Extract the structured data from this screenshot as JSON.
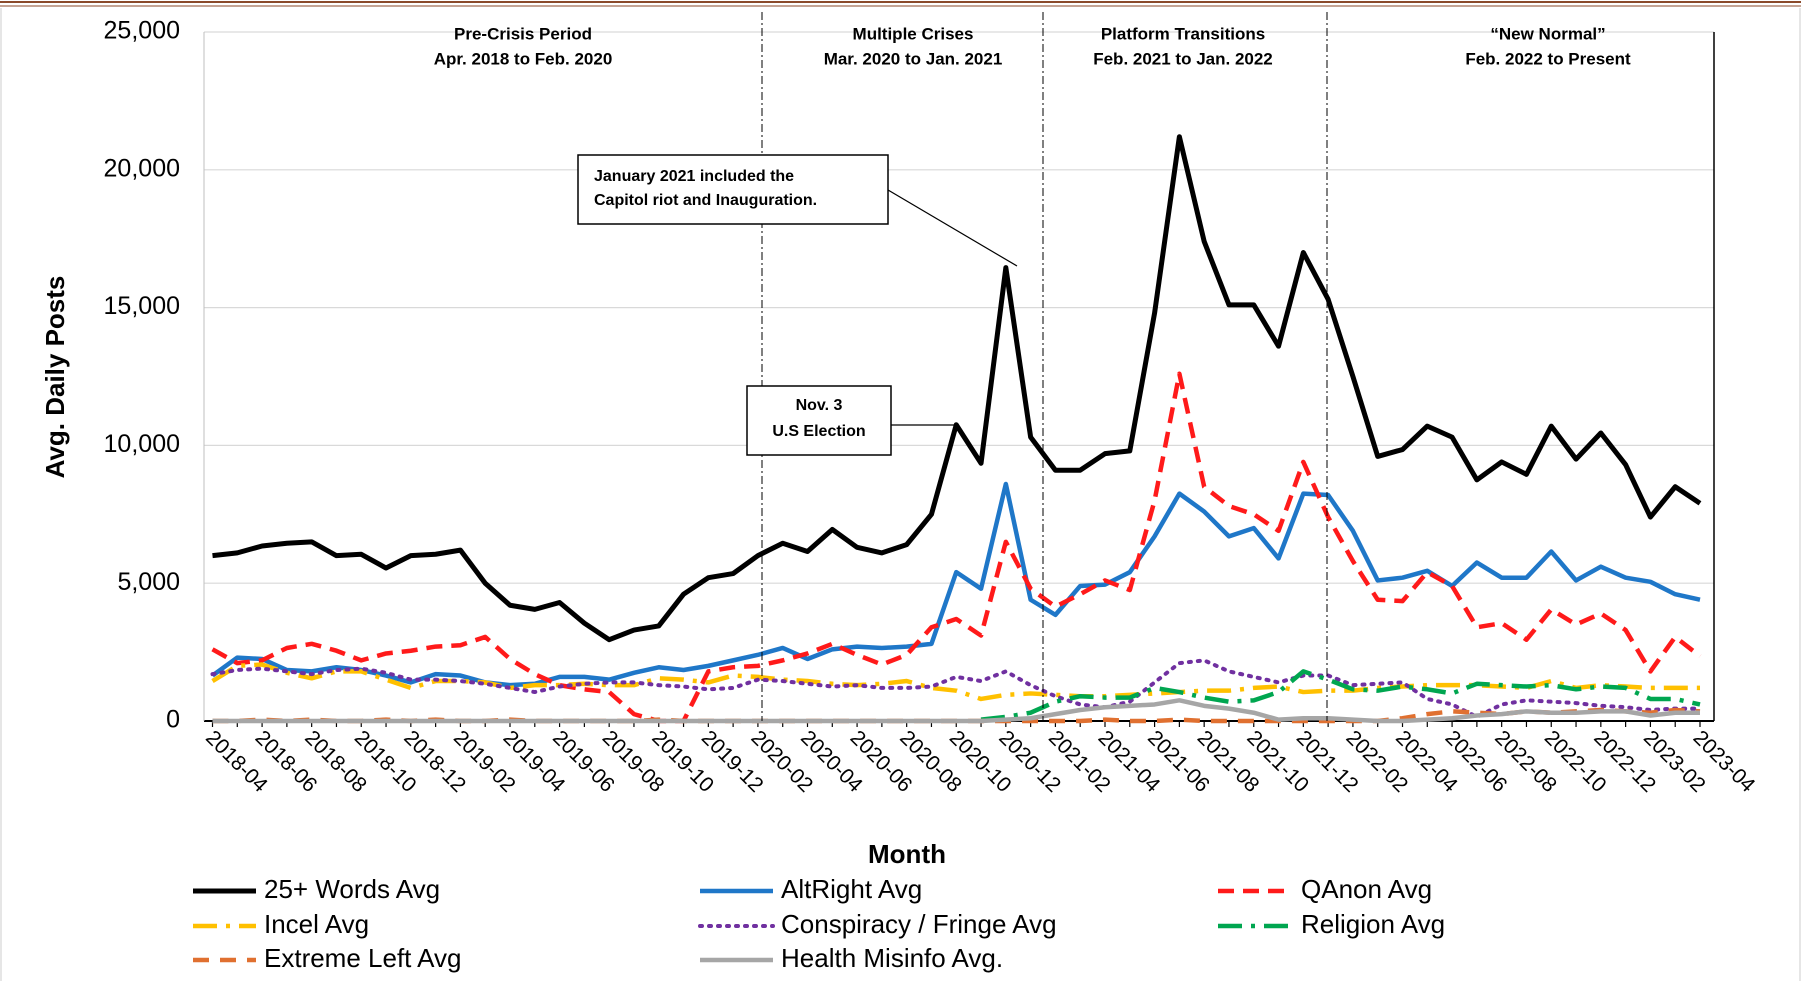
{
  "chart_data": {
    "type": "line",
    "x_label": "Month",
    "y_label": "Avg. Daily Posts",
    "categories": [
      "2018-04",
      null,
      "2018-06",
      null,
      "2018-08",
      null,
      "2018-10",
      null,
      "2018-12",
      null,
      "2019-02",
      null,
      "2019-04",
      null,
      "2019-06",
      null,
      "2019-08",
      null,
      "2019-10",
      null,
      "2019-12",
      null,
      "2020-02",
      null,
      "2020-04",
      null,
      "2020-06",
      null,
      "2020-08",
      null,
      "2020-10",
      null,
      "2020-12",
      null,
      "2021-02",
      null,
      "2021-04",
      null,
      "2021-06",
      null,
      "2021-08",
      null,
      "2021-10",
      null,
      "2021-12",
      null,
      "2022-02",
      null,
      "2022-04",
      null,
      "2022-06",
      null,
      "2022-08",
      null,
      "2022-10",
      null,
      "2022-12",
      null,
      "2023-02",
      null,
      "2023-04"
    ],
    "ylim": [
      0,
      25000
    ],
    "yticks": [
      0,
      {
        "value": 5000,
        "label": "5,000"
      },
      {
        "value": 10000,
        "label": "10,000"
      },
      {
        "value": 15000,
        "label": "15,000"
      },
      {
        "value": 20000,
        "label": "20,000"
      },
      {
        "value": 25000,
        "label": "25,000"
      }
    ],
    "grid": true,
    "legend": "bottom",
    "periods": [
      {
        "title": "Pre-Crisis Period",
        "range": "Apr. 2018 to Feb. 2020"
      },
      {
        "title": "Multiple Crises",
        "range": "Mar. 2020 to Jan. 2021"
      },
      {
        "title": "Platform Transitions",
        "range": "Feb. 2021 to Jan. 2022"
      },
      {
        "title": "“New Normal”",
        "range": "Feb. 2022 to Present"
      }
    ],
    "annotations": [
      {
        "lines": [
          "January 2021 included the",
          "Capitol riot and Inauguration."
        ]
      },
      {
        "lines": [
          "Nov. 3",
          "U.S Election"
        ]
      }
    ],
    "series": [
      {
        "name": "25+ Words Avg",
        "color": "#000000",
        "dash": "solid",
        "values": [
          6000,
          6100,
          6350,
          6450,
          6500,
          6000,
          6050,
          5550,
          6000,
          6050,
          6200,
          5000,
          4200,
          4050,
          4300,
          3550,
          2950,
          3300,
          3450,
          4600,
          5200,
          5350,
          6000,
          6450,
          6150,
          6950,
          6300,
          6100,
          6400,
          7500,
          10750,
          9350,
          16450,
          10300,
          9100,
          9100,
          9700,
          9800,
          14800,
          21200,
          17400,
          15100,
          15100,
          13600,
          17000,
          15300,
          12500,
          9600,
          9850,
          10700,
          10300,
          8750,
          9400,
          8950,
          10700,
          9500,
          10450,
          9300,
          7400,
          8500,
          7900
        ]
      },
      {
        "name": "AltRight Avg",
        "color": "#1f77c8",
        "dash": "solid",
        "values": [
          1650,
          2300,
          2250,
          1850,
          1800,
          1950,
          1850,
          1650,
          1400,
          1700,
          1650,
          1400,
          1300,
          1350,
          1600,
          1600,
          1500,
          1750,
          1950,
          1850,
          2000,
          2200,
          2400,
          2650,
          2250,
          2600,
          2700,
          2650,
          2700,
          2800,
          5400,
          4800,
          8600,
          4400,
          3850,
          4900,
          4950,
          5400,
          6700,
          8250,
          7600,
          6700,
          7000,
          5900,
          8250,
          8200,
          6900,
          5100,
          5200,
          5450,
          4900,
          5750,
          5200,
          5200,
          6150,
          5100,
          5600,
          5200,
          5050,
          4600,
          4400
        ]
      },
      {
        "name": "QAnon Avg",
        "color": "#ff1a1a",
        "dash": "dash",
        "values": [
          2600,
          2100,
          2200,
          2650,
          2800,
          2550,
          2200,
          2450,
          2550,
          2700,
          2750,
          3050,
          2250,
          1700,
          1300,
          1150,
          1050,
          250,
          0,
          0,
          1800,
          1950,
          2000,
          2200,
          2450,
          2800,
          2400,
          2050,
          2400,
          3400,
          3700,
          3100,
          6500,
          4800,
          4150,
          4600,
          5100,
          4750,
          8000,
          12600,
          8500,
          7800,
          7500,
          6900,
          9400,
          7400,
          5800,
          4400,
          4350,
          5400,
          4900,
          3400,
          3550,
          2950,
          4050,
          3500,
          3900,
          3300,
          1800,
          3050,
          2350
        ]
      },
      {
        "name": "Incel Avg",
        "color": "#ffc000",
        "dash": "dashdot",
        "values": [
          1450,
          2000,
          2050,
          1750,
          1550,
          1800,
          1800,
          1500,
          1200,
          1450,
          1450,
          1400,
          1200,
          1300,
          1300,
          1350,
          1300,
          1300,
          1550,
          1500,
          1400,
          1650,
          1600,
          1500,
          1450,
          1350,
          1300,
          1350,
          1450,
          1200,
          1100,
          800,
          950,
          1000,
          950,
          900,
          900,
          950,
          1000,
          1050,
          1100,
          1100,
          1200,
          1250,
          1050,
          1100,
          1100,
          1200,
          1250,
          1300,
          1300,
          1300,
          1250,
          1200,
          1450,
          1200,
          1300,
          1250,
          1200,
          1200,
          1200
        ]
      },
      {
        "name": "Conspiracy / Fringe Avg",
        "color": "#7030a0",
        "dash": "dot",
        "values": [
          1700,
          1850,
          1900,
          1800,
          1700,
          1850,
          1900,
          1750,
          1500,
          1500,
          1450,
          1350,
          1200,
          1050,
          1250,
          1350,
          1400,
          1400,
          1300,
          1250,
          1150,
          1200,
          1500,
          1450,
          1350,
          1250,
          1300,
          1200,
          1200,
          1250,
          1600,
          1450,
          1800,
          1300,
          900,
          600,
          500,
          700,
          1400,
          2100,
          2200,
          1800,
          1600,
          1400,
          1650,
          1650,
          1300,
          1350,
          1400,
          800,
          600,
          150,
          600,
          750,
          700,
          650,
          550,
          500,
          400,
          450,
          450
        ]
      },
      {
        "name": "Religion Avg",
        "color": "#00a650",
        "dash": "dashdot",
        "values": [
          null,
          null,
          null,
          null,
          null,
          null,
          null,
          null,
          null,
          null,
          null,
          null,
          null,
          null,
          null,
          null,
          null,
          null,
          null,
          null,
          null,
          null,
          null,
          null,
          null,
          null,
          null,
          null,
          null,
          null,
          null,
          50,
          150,
          300,
          700,
          900,
          850,
          850,
          1200,
          1050,
          850,
          700,
          750,
          1050,
          1800,
          1500,
          1150,
          1100,
          1250,
          1150,
          1000,
          1350,
          1300,
          1250,
          1300,
          1150,
          1250,
          1200,
          800,
          800,
          600
        ]
      },
      {
        "name": "Extreme Left Avg",
        "color": "#e07030",
        "dash": "longdash",
        "values": [
          0,
          0,
          50,
          0,
          50,
          0,
          0,
          50,
          0,
          50,
          0,
          0,
          50,
          0,
          0,
          0,
          0,
          0,
          50,
          0,
          0,
          0,
          0,
          0,
          0,
          0,
          0,
          0,
          0,
          0,
          0,
          0,
          0,
          0,
          0,
          0,
          50,
          0,
          0,
          50,
          0,
          0,
          0,
          0,
          0,
          0,
          0,
          0,
          100,
          250,
          350,
          300,
          250,
          350,
          300,
          350,
          400,
          350,
          300,
          400,
          350
        ]
      },
      {
        "name": "Health Misinfo Avg.",
        "color": "#a6a6a6",
        "dash": "solid",
        "values": [
          0,
          0,
          0,
          0,
          0,
          0,
          0,
          0,
          0,
          0,
          0,
          0,
          0,
          0,
          0,
          0,
          0,
          0,
          0,
          0,
          0,
          0,
          0,
          0,
          0,
          0,
          0,
          0,
          0,
          0,
          0,
          0,
          50,
          100,
          250,
          400,
          500,
          550,
          600,
          750,
          550,
          450,
          300,
          50,
          100,
          100,
          50,
          0,
          0,
          50,
          100,
          200,
          250,
          350,
          300,
          300,
          350,
          350,
          200,
          300,
          300
        ]
      }
    ]
  }
}
